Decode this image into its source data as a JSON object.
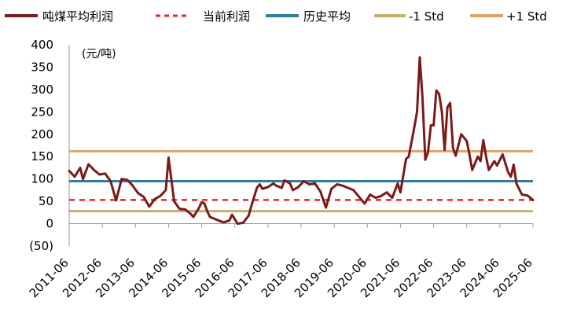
{
  "chart_data": {
    "type": "line",
    "unit_label": "(元/吨)",
    "ylim": [
      -50,
      400
    ],
    "y_ticks": [
      {
        "value": 400,
        "label": "400"
      },
      {
        "value": 350,
        "label": "350"
      },
      {
        "value": 300,
        "label": "300"
      },
      {
        "value": 250,
        "label": "250"
      },
      {
        "value": 200,
        "label": "200"
      },
      {
        "value": 150,
        "label": "150"
      },
      {
        "value": 100,
        "label": "100"
      },
      {
        "value": 50,
        "label": "50"
      },
      {
        "value": 0,
        "label": "0"
      },
      {
        "value": -50,
        "label": "(50)"
      }
    ],
    "x_start": "2011-06",
    "x_end": "2025-06",
    "x_ticks": [
      "2011-06",
      "2012-06",
      "2013-06",
      "2014-06",
      "2015-06",
      "2016-06",
      "2017-06",
      "2018-06",
      "2019-06",
      "2020-06",
      "2021-06",
      "2022-06",
      "2023-06",
      "2024-06",
      "2025-06"
    ],
    "grid": false,
    "legend_position": "top",
    "series": [
      {
        "name": "吨煤平均利润",
        "color": "#7a1a1a",
        "style": "solid",
        "points": [
          [
            "2011-06",
            118
          ],
          [
            "2011-08",
            105
          ],
          [
            "2011-10",
            125
          ],
          [
            "2011-11",
            100
          ],
          [
            "2012-01",
            133
          ],
          [
            "2012-03",
            120
          ],
          [
            "2012-05",
            110
          ],
          [
            "2012-07",
            112
          ],
          [
            "2012-09",
            95
          ],
          [
            "2012-11",
            52
          ],
          [
            "2013-01",
            100
          ],
          [
            "2013-03",
            98
          ],
          [
            "2013-05",
            85
          ],
          [
            "2013-07",
            68
          ],
          [
            "2013-09",
            60
          ],
          [
            "2013-11",
            38
          ],
          [
            "2014-01",
            55
          ],
          [
            "2014-03",
            62
          ],
          [
            "2014-05",
            75
          ],
          [
            "2014-06",
            148
          ],
          [
            "2014-07",
            100
          ],
          [
            "2014-08",
            50
          ],
          [
            "2014-10",
            33
          ],
          [
            "2014-12",
            32
          ],
          [
            "2015-02",
            22
          ],
          [
            "2015-03",
            15
          ],
          [
            "2015-05",
            35
          ],
          [
            "2015-06",
            48
          ],
          [
            "2015-07",
            45
          ],
          [
            "2015-08",
            28
          ],
          [
            "2015-09",
            15
          ],
          [
            "2015-11",
            10
          ],
          [
            "2016-01",
            5
          ],
          [
            "2016-02",
            3
          ],
          [
            "2016-04",
            7
          ],
          [
            "2016-05",
            20
          ],
          [
            "2016-07",
            0
          ],
          [
            "2016-09",
            2
          ],
          [
            "2016-11",
            18
          ],
          [
            "2016-12",
            40
          ],
          [
            "2017-02",
            80
          ],
          [
            "2017-03",
            88
          ],
          [
            "2017-04",
            78
          ],
          [
            "2017-06",
            82
          ],
          [
            "2017-08",
            90
          ],
          [
            "2017-09",
            85
          ],
          [
            "2017-11",
            80
          ],
          [
            "2017-12",
            97
          ],
          [
            "2018-02",
            90
          ],
          [
            "2018-03",
            75
          ],
          [
            "2018-05",
            82
          ],
          [
            "2018-07",
            95
          ],
          [
            "2018-09",
            88
          ],
          [
            "2018-11",
            90
          ],
          [
            "2019-01",
            72
          ],
          [
            "2019-03",
            36
          ],
          [
            "2019-05",
            78
          ],
          [
            "2019-07",
            88
          ],
          [
            "2019-09",
            85
          ],
          [
            "2019-11",
            80
          ],
          [
            "2020-01",
            75
          ],
          [
            "2020-03",
            60
          ],
          [
            "2020-05",
            45
          ],
          [
            "2020-07",
            65
          ],
          [
            "2020-09",
            58
          ],
          [
            "2020-11",
            62
          ],
          [
            "2021-01",
            70
          ],
          [
            "2021-03",
            58
          ],
          [
            "2021-05",
            90
          ],
          [
            "2021-06",
            70
          ],
          [
            "2021-08",
            145
          ],
          [
            "2021-09",
            150
          ],
          [
            "2021-11",
            215
          ],
          [
            "2021-12",
            250
          ],
          [
            "2022-01",
            372
          ],
          [
            "2022-02",
            280
          ],
          [
            "2022-03",
            143
          ],
          [
            "2022-04",
            160
          ],
          [
            "2022-05",
            220
          ],
          [
            "2022-06",
            220
          ],
          [
            "2022-07",
            298
          ],
          [
            "2022-08",
            290
          ],
          [
            "2022-09",
            250
          ],
          [
            "2022-10",
            165
          ],
          [
            "2022-11",
            260
          ],
          [
            "2022-12",
            270
          ],
          [
            "2023-01",
            170
          ],
          [
            "2023-02",
            152
          ],
          [
            "2023-04",
            200
          ],
          [
            "2023-06",
            185
          ],
          [
            "2023-07",
            155
          ],
          [
            "2023-08",
            120
          ],
          [
            "2023-10",
            150
          ],
          [
            "2023-11",
            140
          ],
          [
            "2023-12",
            187
          ],
          [
            "2024-01",
            150
          ],
          [
            "2024-02",
            120
          ],
          [
            "2024-04",
            140
          ],
          [
            "2024-05",
            130
          ],
          [
            "2024-07",
            155
          ],
          [
            "2024-09",
            115
          ],
          [
            "2024-10",
            105
          ],
          [
            "2024-11",
            132
          ],
          [
            "2024-12",
            90
          ],
          [
            "2025-02",
            65
          ],
          [
            "2025-04",
            63
          ],
          [
            "2025-06",
            53
          ]
        ]
      },
      {
        "name": "当前利润",
        "color": "#e8262b",
        "style": "dashed",
        "value": 53
      },
      {
        "name": "历史平均",
        "color": "#2e7f97",
        "style": "solid",
        "value": 95
      },
      {
        "name": "-1 Std",
        "color": "#c8ad6e",
        "style": "solid",
        "value": 28
      },
      {
        "name": "+1 Std",
        "color": "#dda56a",
        "style": "solid",
        "value": 162
      }
    ]
  }
}
